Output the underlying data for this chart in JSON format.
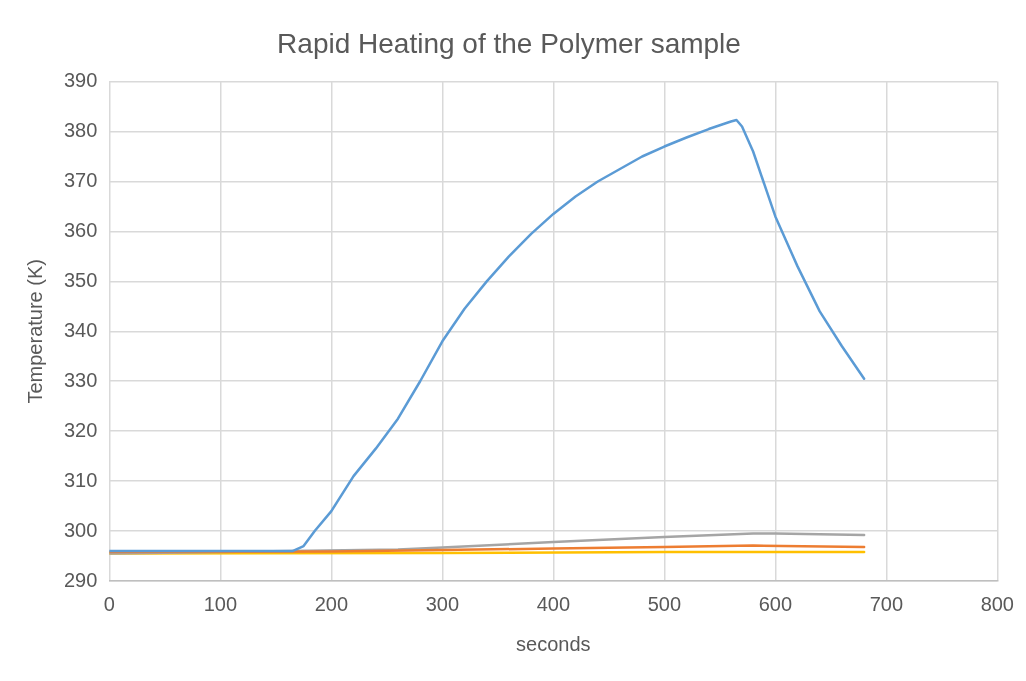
{
  "chart_data": {
    "type": "line",
    "title": "Rapid Heating of the Polymer sample",
    "xlabel": "seconds",
    "ylabel": "Temperature (K)",
    "xlim": [
      0,
      800
    ],
    "xticks": [
      0,
      100,
      200,
      300,
      400,
      500,
      600,
      700,
      800
    ],
    "ylim": [
      290,
      390
    ],
    "yticks": [
      290,
      300,
      310,
      320,
      330,
      340,
      350,
      360,
      370,
      380,
      390
    ],
    "grid": true,
    "legend": false,
    "marker": "none",
    "line_style": "solid",
    "series": [
      {
        "color": "#5b9bd5",
        "x": [
          0,
          165,
          175,
          185,
          200,
          220,
          240,
          260,
          280,
          300,
          320,
          340,
          360,
          380,
          400,
          420,
          440,
          460,
          480,
          500,
          520,
          540,
          560,
          565,
          570,
          580,
          600,
          620,
          640,
          660,
          680
        ],
        "values": [
          296,
          296,
          297,
          300,
          304,
          311,
          316.5,
          322.5,
          330,
          338,
          344.5,
          350,
          355,
          359.5,
          363.5,
          367,
          370,
          372.5,
          375,
          377,
          378.8,
          380.5,
          382,
          382.3,
          381,
          376,
          363,
          353,
          344,
          337,
          330.5
        ]
      },
      {
        "color": "#ed7d31",
        "x": [
          0,
          200,
          300,
          400,
          500,
          580,
          680
        ],
        "values": [
          295.8,
          295.9,
          296.2,
          296.5,
          296.8,
          297.1,
          296.8
        ]
      },
      {
        "color": "#a5a5a5",
        "x": [
          0,
          260,
          300,
          400,
          500,
          580,
          600,
          680
        ],
        "values": [
          295.5,
          296.3,
          296.7,
          297.8,
          298.8,
          299.5,
          299.5,
          299.2
        ]
      },
      {
        "color": "#ffc000",
        "x": [
          0,
          300,
          500,
          680
        ],
        "values": [
          295.5,
          295.6,
          295.8,
          295.8
        ]
      }
    ]
  }
}
